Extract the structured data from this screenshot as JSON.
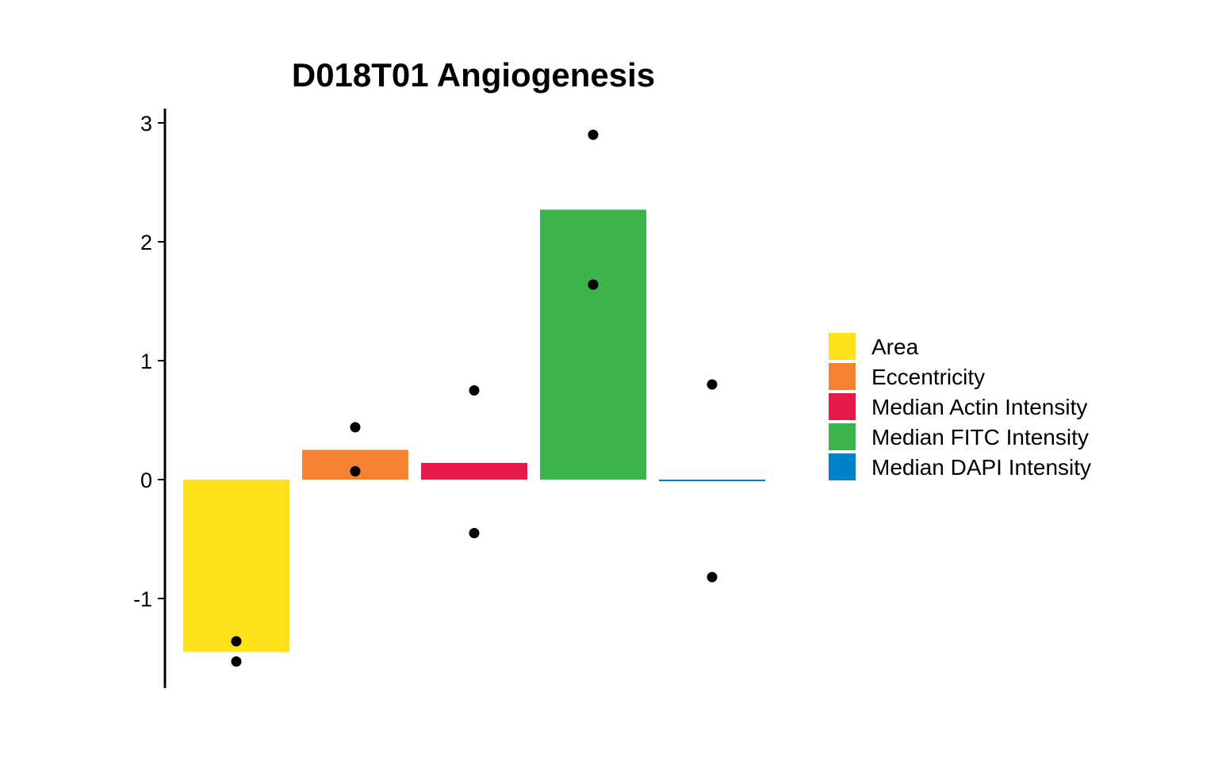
{
  "chart_data": {
    "type": "bar",
    "title": "D018T01 Angiogenesis",
    "xlabel": "",
    "ylabel": "",
    "ylim": [
      -1.75,
      3.1
    ],
    "yticks": [
      -1,
      0,
      1,
      2,
      3
    ],
    "categories": [
      "Area",
      "Eccentricity",
      "Median Actin Intensity",
      "Median FITC Intensity",
      "Median DAPI Intensity"
    ],
    "values": [
      -1.45,
      0.25,
      0.14,
      2.27,
      -0.01
    ],
    "colors": [
      "#FFE119",
      "#F58231",
      "#E6194B",
      "#3CB44B",
      "#0082C8"
    ],
    "points": [
      [
        -1.36,
        -1.53
      ],
      [
        0.44,
        0.07
      ],
      [
        0.75,
        -0.45
      ],
      [
        2.9,
        1.64
      ],
      [
        0.8,
        -0.82
      ]
    ],
    "grid": false,
    "legend_position": "right",
    "legend": [
      "Area",
      "Eccentricity",
      "Median Actin Intensity",
      "Median FITC Intensity",
      "Median DAPI Intensity"
    ]
  }
}
